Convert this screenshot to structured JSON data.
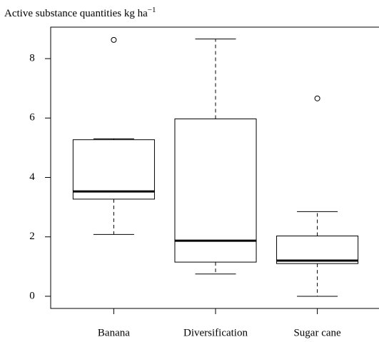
{
  "chart_data": {
    "type": "box",
    "title": "Active substance quantities kg ha",
    "title_superscript": "−1",
    "categories": [
      "Banana",
      "Diversification",
      "Sugar cane"
    ],
    "boxes": [
      {
        "whislo": 2.08,
        "q1": 3.27,
        "med": 3.53,
        "q3": 5.27,
        "whishi": 5.3,
        "fliers": [
          8.63
        ]
      },
      {
        "whislo": 0.75,
        "q1": 1.15,
        "med": 1.87,
        "q3": 5.97,
        "whishi": 8.66,
        "fliers": []
      },
      {
        "whislo": 0,
        "q1": 1.1,
        "med": 1.2,
        "q3": 2.03,
        "whishi": 2.85,
        "fliers": [
          6.66
        ]
      }
    ],
    "color": "#000000",
    "ylim": [
      -0.41,
      9.06
    ],
    "yticks": [
      0,
      2,
      4,
      6,
      8
    ]
  }
}
